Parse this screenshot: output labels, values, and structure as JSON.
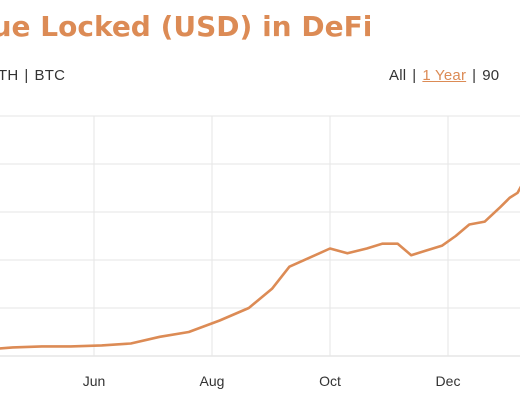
{
  "title": "lue Locked (USD) in DeFi",
  "unit_options": [
    "TH",
    "BTC"
  ],
  "range_options": [
    {
      "label": "All",
      "active": false
    },
    {
      "label": "1 Year",
      "active": true
    },
    {
      "label": "90",
      "active": false
    }
  ],
  "colors": {
    "accent": "#dc8b55",
    "line": "#dc8b55",
    "grid": "#e6e6e6",
    "text": "#333333"
  },
  "chart_data": {
    "type": "line",
    "title": "lue Locked (USD) in DeFi",
    "xlabel": "",
    "ylabel": "",
    "grid": true,
    "x_ticks": [
      "Jun",
      "Aug",
      "Oct",
      "Dec"
    ],
    "series": [
      {
        "x": [
          "2019-04-08",
          "2019-04-20",
          "2019-05-05",
          "2019-05-20",
          "2019-06-05",
          "2019-06-20",
          "2019-07-05",
          "2019-07-20",
          "2019-08-05",
          "2019-08-20",
          "2019-09-01",
          "2019-09-10",
          "2019-09-20",
          "2019-10-01",
          "2019-10-10",
          "2019-10-20",
          "2019-10-28",
          "2019-11-05",
          "2019-11-12",
          "2019-11-20",
          "2019-11-28",
          "2019-12-05",
          "2019-12-12",
          "2019-12-20",
          "2019-12-28",
          "2020-01-02",
          "2020-01-06",
          "2020-01-10",
          "2020-01-13"
        ],
        "values": [
          0.07,
          0.09,
          0.1,
          0.1,
          0.11,
          0.13,
          0.2,
          0.25,
          0.37,
          0.5,
          0.7,
          0.93,
          1.02,
          1.12,
          1.07,
          1.12,
          1.17,
          1.17,
          1.05,
          1.1,
          1.15,
          1.25,
          1.37,
          1.4,
          1.55,
          1.65,
          1.7,
          1.85,
          2.3
        ]
      }
    ]
  }
}
